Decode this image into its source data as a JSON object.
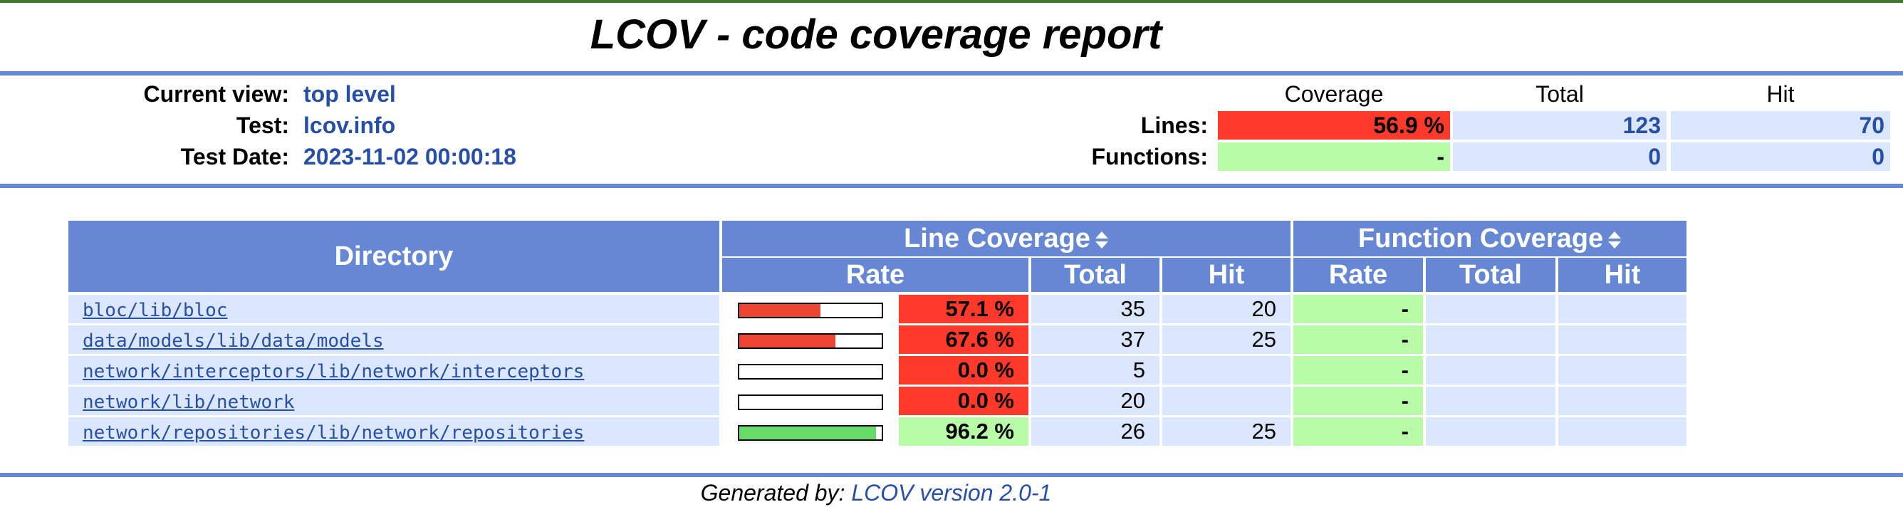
{
  "title": "LCOV - code coverage report",
  "header": {
    "current_view_label": "Current view:",
    "current_view_value": "top level",
    "test_label": "Test:",
    "test_value": "lcov.info",
    "test_date_label": "Test Date:",
    "test_date_value": "2023-11-02 00:00:18",
    "col_coverage": "Coverage",
    "col_total": "Total",
    "col_hit": "Hit",
    "lines_label": "Lines:",
    "lines_coverage": "56.9 %",
    "lines_total": "123",
    "lines_hit": "70",
    "functions_label": "Functions:",
    "functions_coverage": "-",
    "functions_total": "0",
    "functions_hit": "0"
  },
  "table": {
    "directory_header": "Directory",
    "line_coverage_header": "Line Coverage",
    "function_coverage_header": "Function Coverage",
    "sub_rate": "Rate",
    "sub_total": "Total",
    "sub_hit": "Hit",
    "rows": [
      {
        "directory": "bloc/lib/bloc",
        "percent": "57.1 %",
        "fraction": 0.571,
        "total": "35",
        "hit": "20",
        "fn_rate": "-",
        "fn_total": "",
        "fn_hit": ""
      },
      {
        "directory": "data/models/lib/data/models",
        "percent": "67.6 %",
        "fraction": 0.676,
        "total": "37",
        "hit": "25",
        "fn_rate": "-",
        "fn_total": "",
        "fn_hit": ""
      },
      {
        "directory": "network/interceptors/lib/network/interceptors",
        "percent": "0.0 %",
        "fraction": 0.0,
        "total": "5",
        "hit": "",
        "fn_rate": "-",
        "fn_total": "",
        "fn_hit": ""
      },
      {
        "directory": "network/lib/network",
        "percent": "0.0 %",
        "fraction": 0.0,
        "total": "20",
        "hit": "",
        "fn_rate": "-",
        "fn_total": "",
        "fn_hit": ""
      },
      {
        "directory": "network/repositories/lib/network/repositories",
        "percent": "96.2 %",
        "fraction": 0.962,
        "total": "26",
        "hit": "25",
        "fn_rate": "-",
        "fn_total": "",
        "fn_hit": ""
      }
    ]
  },
  "footer": {
    "generated_by": "Generated by:",
    "link_text": "LCOV version 2.0-1"
  },
  "colors": {
    "header_blue": "#6688d4",
    "cell_blue": "#dae7fe",
    "low_red": "#ff3a2a",
    "high_green": "#b8fca8",
    "bar_red": "#ee4433",
    "bar_green": "#66dd66",
    "link_blue": "#284fa8"
  }
}
